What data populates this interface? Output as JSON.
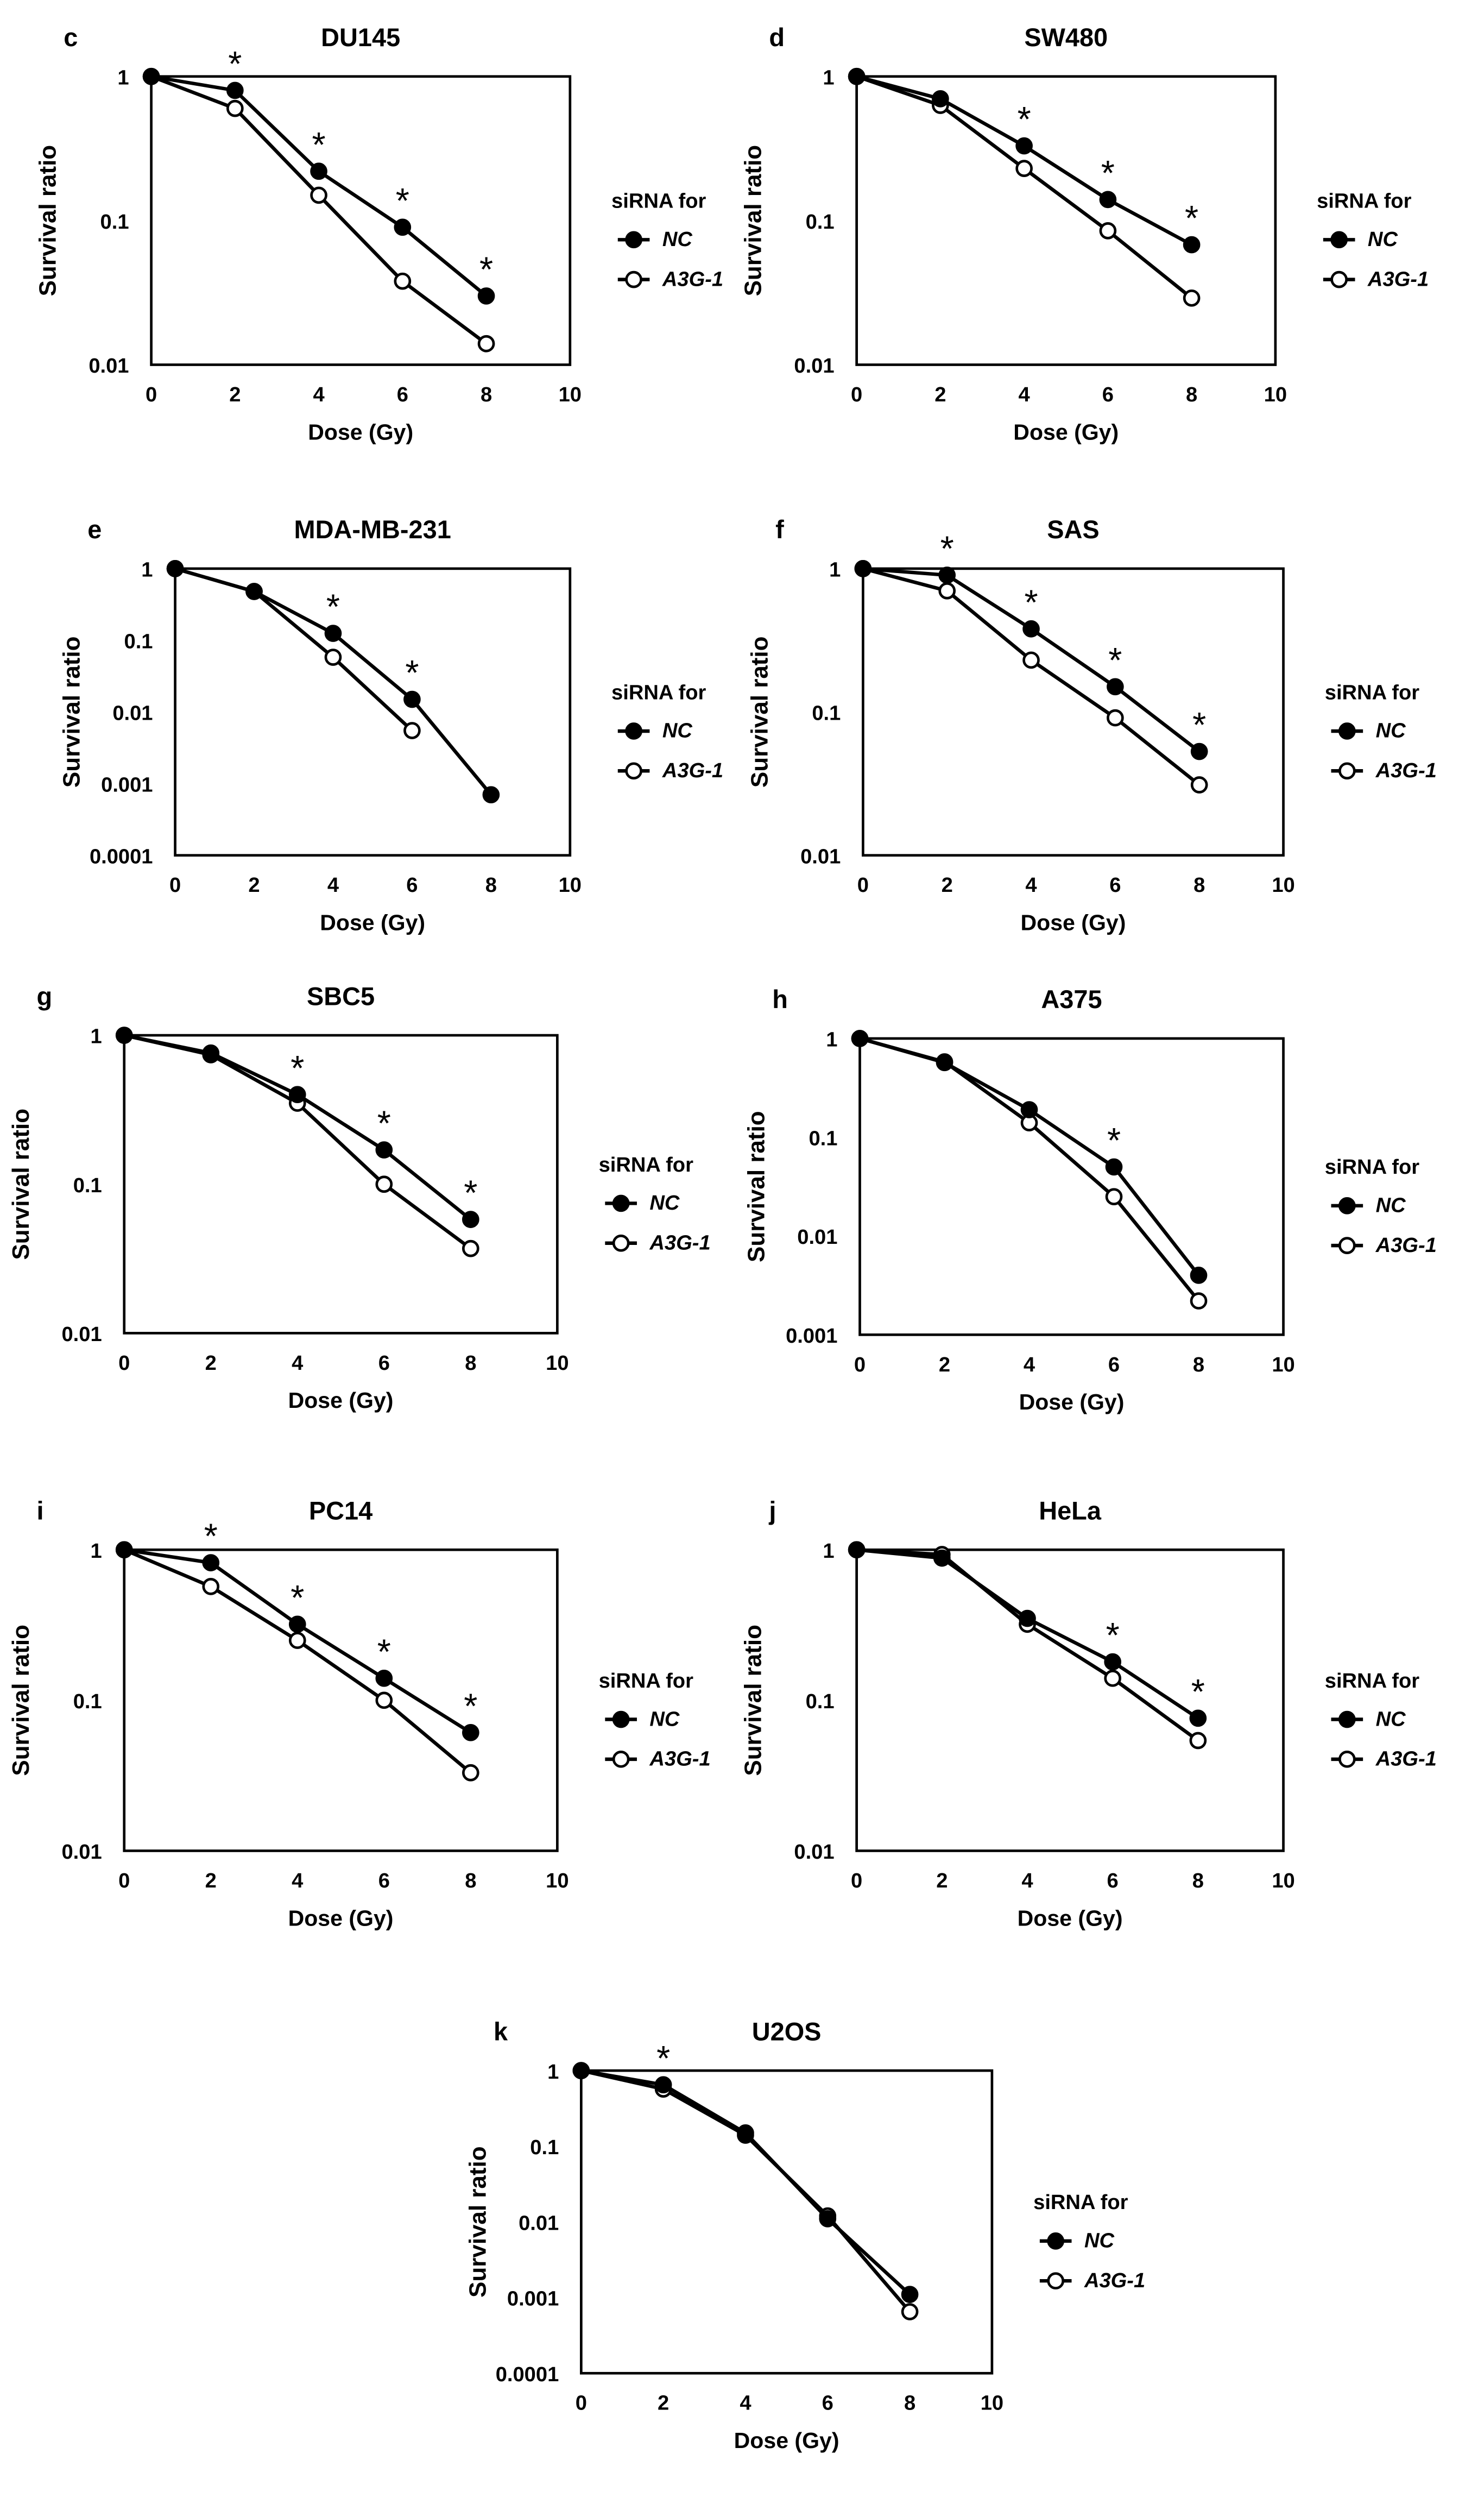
{
  "figure": {
    "x_label": "Dose (Gy)",
    "y_label": "Survival ratio",
    "legend_title": "siRNA for",
    "significance_mark": "*"
  },
  "chart_data": [
    {
      "type": "line",
      "panel": "c",
      "title": "DU145",
      "xlabel": "Dose (Gy)",
      "ylabel": "Survival ratio",
      "yscale": "log",
      "xlim": [
        0,
        10
      ],
      "x_ticks": [
        0,
        2,
        4,
        6,
        8,
        10
      ],
      "ylim": [
        0.01,
        1
      ],
      "y_ticks": [
        "0.01",
        "0.1",
        "1"
      ],
      "legend_title": "siRNA for",
      "series": [
        {
          "name": "NC",
          "marker": "filled",
          "x": [
            0,
            2,
            4,
            6,
            8
          ],
          "values": [
            1,
            0.8,
            0.22,
            0.09,
            0.03
          ]
        },
        {
          "name": "A3G-1",
          "marker": "open",
          "x": [
            0,
            2,
            4,
            6,
            8
          ],
          "values": [
            1,
            0.6,
            0.15,
            0.038,
            0.014
          ]
        }
      ],
      "significant_x": [
        2,
        4,
        6,
        8
      ]
    },
    {
      "type": "line",
      "panel": "d",
      "title": "SW480",
      "xlabel": "Dose (Gy)",
      "ylabel": "Survival ratio",
      "yscale": "log",
      "xlim": [
        0,
        10
      ],
      "x_ticks": [
        0,
        2,
        4,
        6,
        8,
        10
      ],
      "ylim": [
        0.01,
        1
      ],
      "y_ticks": [
        "0.01",
        "0.1",
        "1"
      ],
      "legend_title": "siRNA for",
      "series": [
        {
          "name": "NC",
          "marker": "filled",
          "x": [
            0,
            2,
            4,
            6,
            8
          ],
          "values": [
            1,
            0.7,
            0.33,
            0.14,
            0.068
          ]
        },
        {
          "name": "A3G-1",
          "marker": "open",
          "x": [
            0,
            2,
            4,
            6,
            8
          ],
          "values": [
            1,
            0.63,
            0.23,
            0.085,
            0.029
          ]
        }
      ],
      "significant_x": [
        4,
        6,
        8
      ]
    },
    {
      "type": "line",
      "panel": "e",
      "title": "MDA-MB-231",
      "xlabel": "Dose (Gy)",
      "ylabel": "Survival ratio",
      "yscale": "log",
      "xlim": [
        0,
        10
      ],
      "x_ticks": [
        0,
        2,
        4,
        6,
        8,
        10
      ],
      "ylim": [
        0.0001,
        1
      ],
      "y_ticks": [
        "0.0001",
        "0.001",
        "0.01",
        "0.1",
        "1"
      ],
      "legend_title": "siRNA for",
      "series": [
        {
          "name": "NC",
          "marker": "filled",
          "x": [
            0,
            2,
            4,
            6,
            8
          ],
          "values": [
            1,
            0.48,
            0.125,
            0.015,
            0.0007
          ]
        },
        {
          "name": "A3G-1",
          "marker": "open",
          "x": [
            0,
            2,
            4,
            6
          ],
          "values": [
            1,
            0.48,
            0.058,
            0.0055
          ]
        }
      ],
      "significant_x": [
        4,
        6
      ]
    },
    {
      "type": "line",
      "panel": "f",
      "title": "SAS",
      "xlabel": "Dose (Gy)",
      "ylabel": "Survival ratio",
      "yscale": "log",
      "xlim": [
        0,
        10
      ],
      "x_ticks": [
        0,
        2,
        4,
        6,
        8,
        10
      ],
      "ylim": [
        0.01,
        1
      ],
      "y_ticks": [
        "0.01",
        "0.1",
        "1"
      ],
      "legend_title": "siRNA for",
      "series": [
        {
          "name": "NC",
          "marker": "filled",
          "x": [
            0,
            2,
            4,
            6,
            8
          ],
          "values": [
            1,
            0.9,
            0.38,
            0.15,
            0.053
          ]
        },
        {
          "name": "A3G-1",
          "marker": "open",
          "x": [
            0,
            2,
            4,
            6,
            8
          ],
          "values": [
            1,
            0.7,
            0.23,
            0.091,
            0.031
          ]
        }
      ],
      "significant_x": [
        2,
        4,
        6,
        8
      ]
    },
    {
      "type": "line",
      "panel": "g",
      "title": "SBC5",
      "xlabel": "Dose (Gy)",
      "ylabel": "Survival ratio",
      "yscale": "log",
      "xlim": [
        0,
        10
      ],
      "x_ticks": [
        0,
        2,
        4,
        6,
        8,
        10
      ],
      "ylim": [
        0.01,
        1
      ],
      "y_ticks": [
        "0.01",
        "0.1",
        "1"
      ],
      "legend_title": "siRNA for",
      "series": [
        {
          "name": "NC",
          "marker": "filled",
          "x": [
            0,
            2,
            4,
            6,
            8
          ],
          "values": [
            1,
            0.76,
            0.4,
            0.17,
            0.058
          ]
        },
        {
          "name": "A3G-1",
          "marker": "open",
          "x": [
            0,
            2,
            4,
            6,
            8
          ],
          "values": [
            1,
            0.74,
            0.35,
            0.1,
            0.037
          ]
        }
      ],
      "significant_x": [
        4,
        6,
        8
      ]
    },
    {
      "type": "line",
      "panel": "h",
      "title": "A375",
      "xlabel": "Dose (Gy)",
      "ylabel": "Survival ratio",
      "yscale": "log",
      "xlim": [
        0,
        10
      ],
      "x_ticks": [
        0,
        2,
        4,
        6,
        8,
        10
      ],
      "ylim": [
        0.001,
        1
      ],
      "y_ticks": [
        "0.001",
        "0.01",
        "0.1",
        "1"
      ],
      "legend_title": "siRNA for",
      "series": [
        {
          "name": "NC",
          "marker": "filled",
          "x": [
            0,
            2,
            4,
            6,
            8
          ],
          "values": [
            1,
            0.57,
            0.19,
            0.05,
            0.004
          ]
        },
        {
          "name": "A3G-1",
          "marker": "open",
          "x": [
            0,
            2,
            4,
            6,
            8
          ],
          "values": [
            1,
            0.58,
            0.14,
            0.025,
            0.0022
          ]
        }
      ],
      "significant_x": [
        6
      ]
    },
    {
      "type": "line",
      "panel": "i",
      "title": "PC14",
      "xlabel": "Dose (Gy)",
      "ylabel": "Survival ratio",
      "yscale": "log",
      "xlim": [
        0,
        10
      ],
      "x_ticks": [
        0,
        2,
        4,
        6,
        8,
        10
      ],
      "ylim": [
        0.01,
        1
      ],
      "y_ticks": [
        "0.01",
        "0.1",
        "1"
      ],
      "legend_title": "siRNA for",
      "series": [
        {
          "name": "NC",
          "marker": "filled",
          "x": [
            0,
            2,
            4,
            6,
            8
          ],
          "values": [
            1,
            0.82,
            0.32,
            0.14,
            0.061
          ]
        },
        {
          "name": "A3G-1",
          "marker": "open",
          "x": [
            0,
            2,
            4,
            6,
            8
          ],
          "values": [
            1,
            0.57,
            0.25,
            0.1,
            0.033
          ]
        }
      ],
      "significant_x": [
        2,
        4,
        6,
        8
      ]
    },
    {
      "type": "line",
      "panel": "j",
      "title": "HeLa",
      "xlabel": "Dose (Gy)",
      "ylabel": "Survival ratio",
      "yscale": "log",
      "xlim": [
        0,
        10
      ],
      "x_ticks": [
        0,
        2,
        4,
        6,
        8,
        10
      ],
      "ylim": [
        0.01,
        1
      ],
      "y_ticks": [
        "0.01",
        "0.1",
        "1"
      ],
      "legend_title": "siRNA for",
      "series": [
        {
          "name": "NC",
          "marker": "filled",
          "x": [
            0,
            2,
            4,
            6,
            8
          ],
          "values": [
            1,
            0.88,
            0.35,
            0.18,
            0.076
          ]
        },
        {
          "name": "A3G-1",
          "marker": "open",
          "x": [
            0,
            2,
            4,
            6,
            8
          ],
          "values": [
            1,
            0.93,
            0.32,
            0.14,
            0.054
          ]
        }
      ],
      "significant_x": [
        6,
        8
      ]
    },
    {
      "type": "line",
      "panel": "k",
      "title": "U2OS",
      "xlabel": "Dose (Gy)",
      "ylabel": "Survival ratio",
      "yscale": "log",
      "xlim": [
        0,
        10
      ],
      "x_ticks": [
        0,
        2,
        4,
        6,
        8,
        10
      ],
      "ylim": [
        0.0001,
        1
      ],
      "y_ticks": [
        "0.0001",
        "0.001",
        "0.01",
        "0.1",
        "1"
      ],
      "legend_title": "siRNA for",
      "series": [
        {
          "name": "NC",
          "marker": "filled",
          "x": [
            0,
            2,
            4,
            6,
            8
          ],
          "values": [
            1,
            0.65,
            0.15,
            0.011,
            0.0011
          ]
        },
        {
          "name": "A3G-1",
          "marker": "open",
          "x": [
            0,
            2,
            4,
            6,
            8
          ],
          "values": [
            1,
            0.57,
            0.14,
            0.012,
            0.00065
          ]
        }
      ],
      "significant_x": [
        2
      ]
    }
  ]
}
